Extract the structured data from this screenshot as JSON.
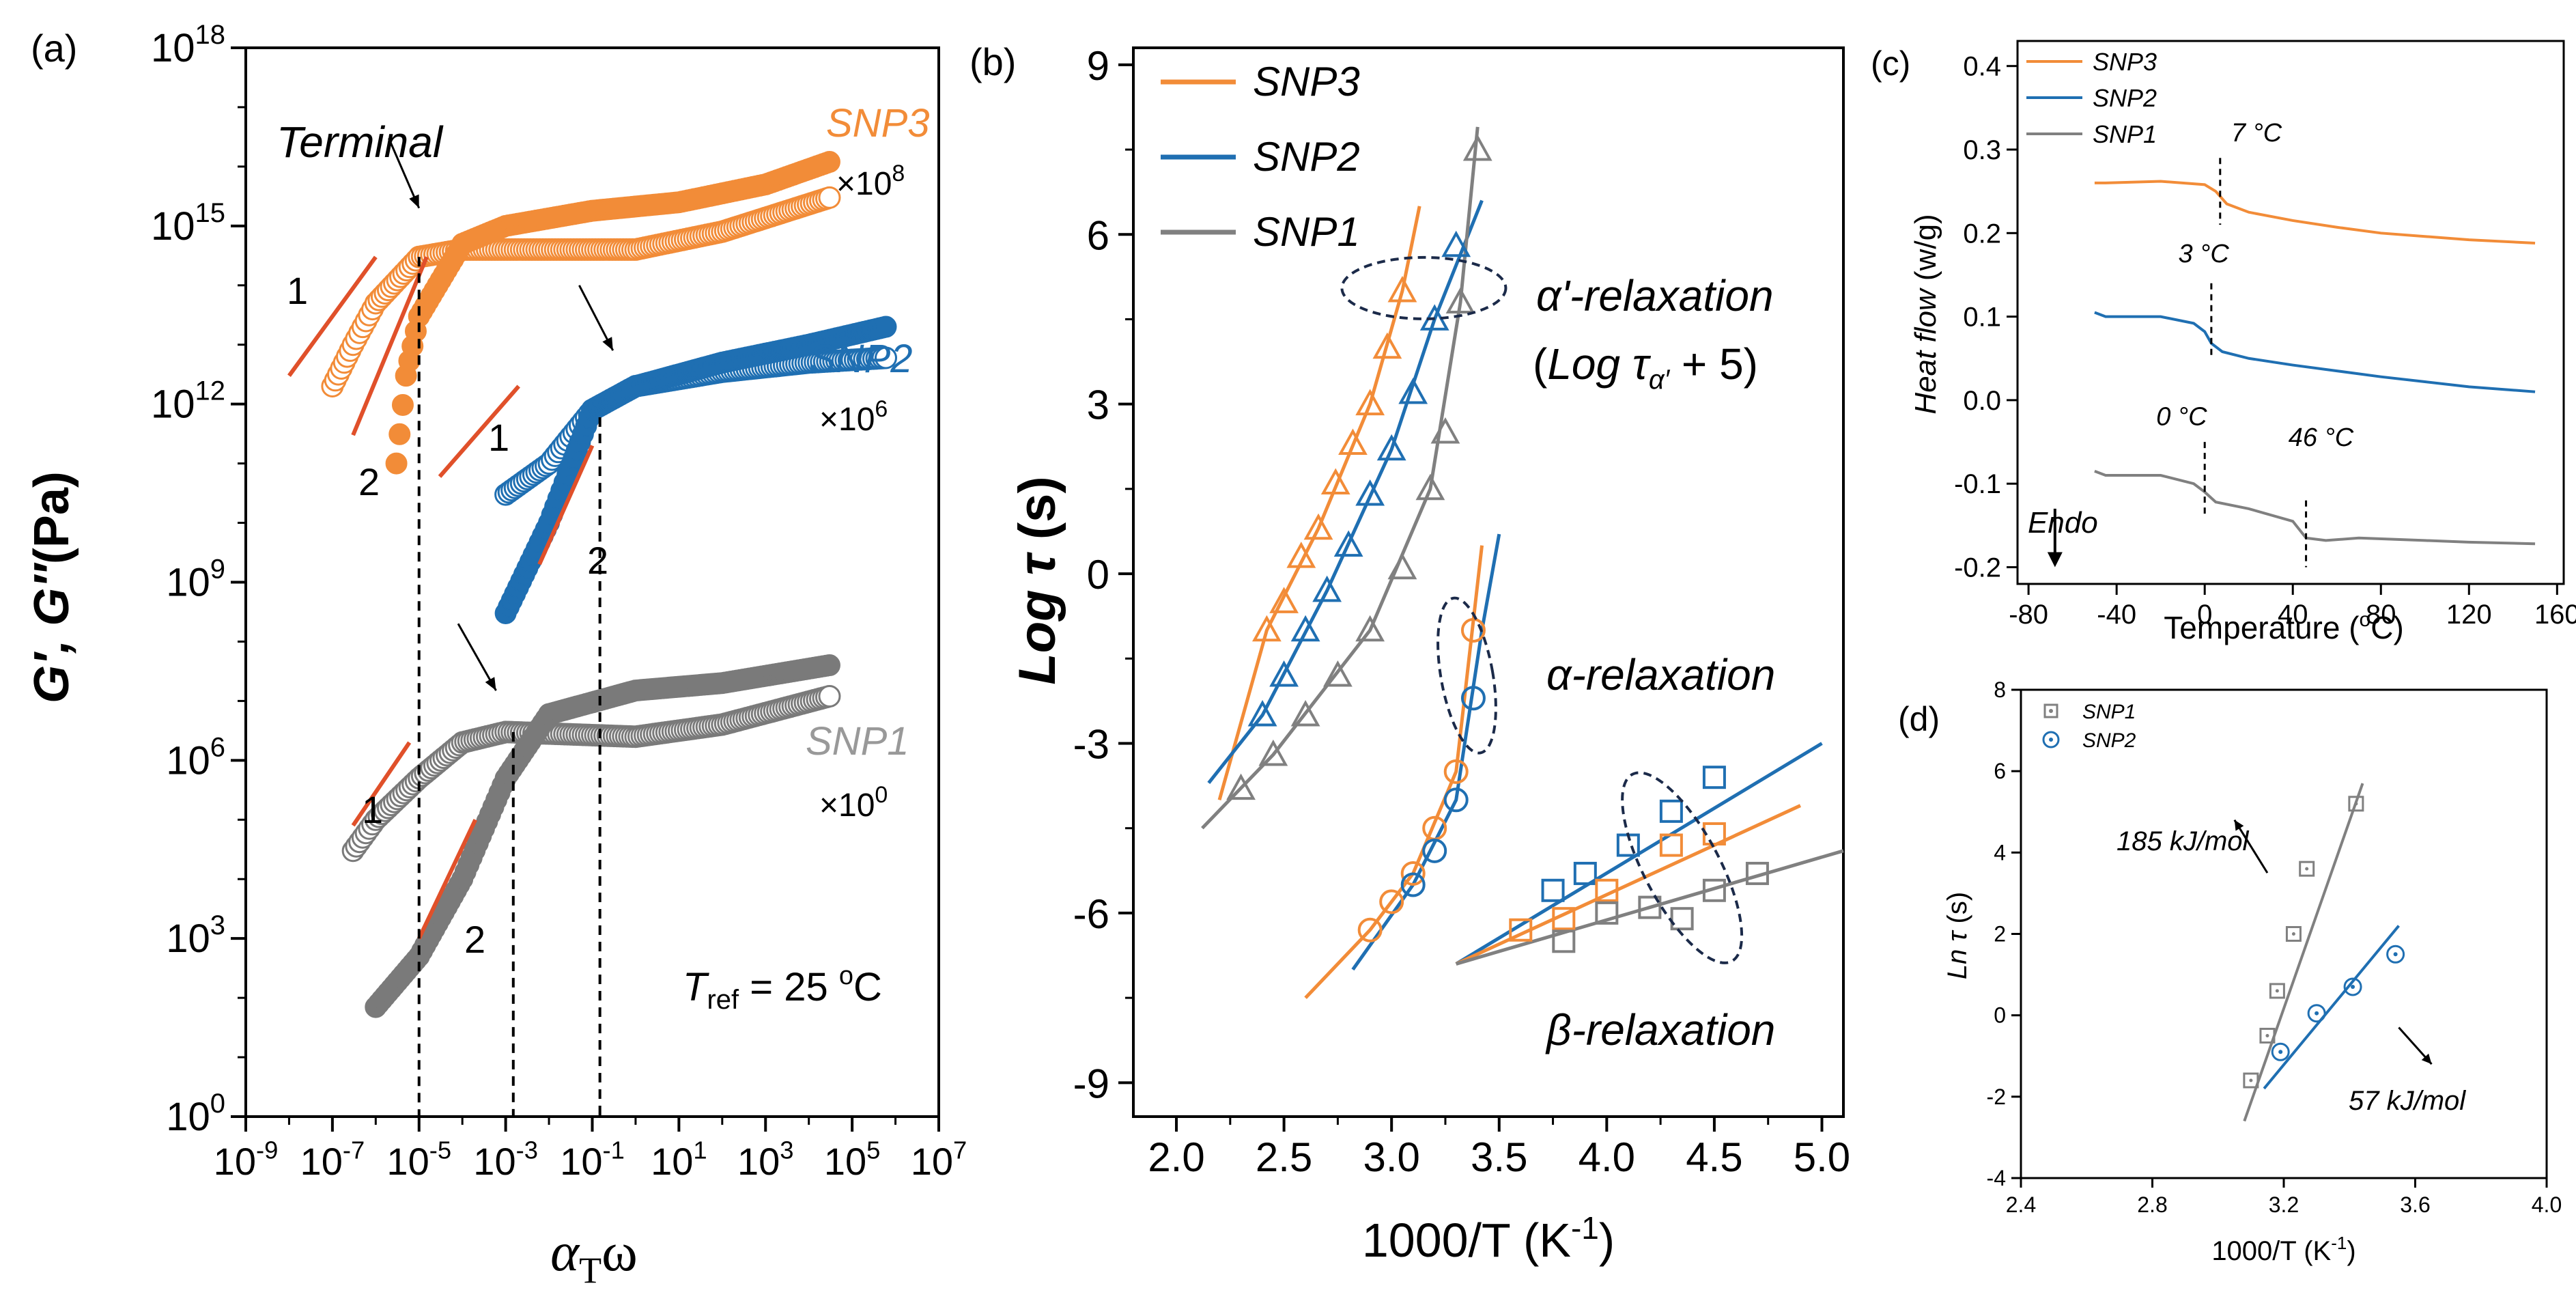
{
  "colors": {
    "snp3": "#F28C38",
    "snp2": "#1F6FB2",
    "snp1": "#808080",
    "fitline": "#E0502A",
    "ellipse": "#1B2A49"
  },
  "panels": {
    "a": "(a)",
    "b": "(b)",
    "c": "(c)",
    "d": "(d)"
  },
  "chart_data": [
    {
      "panel": "a",
      "type": "scatter",
      "xlabel": "αTω",
      "ylabel": "G′, G″(Pa)",
      "xscale": "log",
      "yscale": "log",
      "xlim": [
        1e-09,
        10000000.0
      ],
      "ylim": [
        1,
        1e+18
      ],
      "xticks": [
        "10-9",
        "10-7",
        "10-5",
        "10-3",
        "10-1",
        "101",
        "103",
        "105",
        "107"
      ],
      "yticks": [
        "100",
        "103",
        "106",
        "109",
        "1012",
        "1015",
        "1018"
      ],
      "series": [
        {
          "name": "SNP3",
          "shift": "×108",
          "G_storage": [
            [
              3e-06,
              100000000000.0
            ],
            [
              5e-06,
              3000000000000.0
            ],
            [
              1e-05,
              30000000000000.0
            ],
            [
              0.0001,
              500000000000000.0
            ],
            [
              0.001,
              1000000000000000.0
            ],
            [
              0.1,
              1800000000000000.0
            ],
            [
              10,
              2500000000000000.0
            ],
            [
              1000.0,
              5000000000000000.0
            ],
            [
              30000.0,
              1.2e+16
            ]
          ],
          "G_loss": [
            [
              1e-07,
              2000000000000.0
            ],
            [
              3e-07,
              10000000000000.0
            ],
            [
              1e-06,
              50000000000000.0
            ],
            [
              1e-05,
              300000000000000.0
            ],
            [
              0.0001,
              400000000000000.0
            ],
            [
              0.01,
              400000000000000.0
            ],
            [
              1,
              400000000000000.0
            ],
            [
              100,
              800000000000000.0
            ],
            [
              30000.0,
              3000000000000000.0
            ]
          ]
        },
        {
          "name": "SNP2",
          "shift": "×106",
          "G_storage": [
            [
              0.001,
              300000000.0
            ],
            [
              0.01,
              10000000000.0
            ],
            [
              0.1,
              800000000000.0
            ],
            [
              1,
              2000000000000.0
            ],
            [
              100,
              5000000000000.0
            ],
            [
              10000.0,
              10000000000000.0
            ],
            [
              600000.0,
              20000000000000.0
            ]
          ],
          "G_loss": [
            [
              0.001,
              30000000000.0
            ],
            [
              0.01,
              100000000000.0
            ],
            [
              0.1,
              800000000000.0
            ],
            [
              1,
              2000000000000.0
            ],
            [
              100,
              3500000000000.0
            ],
            [
              10000.0,
              5000000000000.0
            ],
            [
              600000.0,
              6000000000000.0
            ]
          ]
        },
        {
          "name": "SNP1",
          "shift": "×100",
          "G_storage": [
            [
              1e-06,
              70.0
            ],
            [
              1e-05,
              500.0
            ],
            [
              0.0001,
              10000.0
            ],
            [
              0.001,
              500000.0
            ],
            [
              0.01,
              6000000.0
            ],
            [
              1,
              15000000.0
            ],
            [
              100,
              20000000.0
            ],
            [
              30000.0,
              40000000.0
            ]
          ],
          "G_loss": [
            [
              3e-07,
              30000.0
            ],
            [
              1e-06,
              100000.0
            ],
            [
              1e-05,
              500000.0
            ],
            [
              0.0001,
              2000000.0
            ],
            [
              0.001,
              3000000.0
            ],
            [
              1,
              2500000.0
            ],
            [
              100,
              4000000.0
            ],
            [
              30000.0,
              12000000.0
            ]
          ]
        }
      ],
      "annotations": [
        "Terminal",
        "Tref = 25 oC",
        "1",
        "2"
      ]
    },
    {
      "panel": "b",
      "type": "scatter",
      "xlabel": "1000/T (K-1)",
      "ylabel": "Log τ (s)",
      "xlim": [
        1.8,
        5.1
      ],
      "ylim": [
        -9.6,
        9.3
      ],
      "xticks": [
        "2.0",
        "2.5",
        "3.0",
        "3.5",
        "4.0",
        "4.5",
        "5.0"
      ],
      "yticks": [
        "9",
        "6",
        "3",
        "0",
        "-3",
        "-6",
        "-9"
      ],
      "legend": [
        "SNP3",
        "SNP2",
        "SNP1"
      ],
      "relaxations": [
        "α'-relaxation",
        "(Log τα' + 5)",
        "α-relaxation",
        "β-relaxation"
      ],
      "alpha_prime": {
        "SNP3": [
          [
            2.42,
            -1.0
          ],
          [
            2.5,
            -0.5
          ],
          [
            2.58,
            0.3
          ],
          [
            2.66,
            0.8
          ],
          [
            2.74,
            1.6
          ],
          [
            2.82,
            2.3
          ],
          [
            2.9,
            3.0
          ],
          [
            2.98,
            4.0
          ],
          [
            3.05,
            5.0
          ]
        ],
        "SNP2": [
          [
            2.4,
            -2.5
          ],
          [
            2.5,
            -1.8
          ],
          [
            2.6,
            -1.0
          ],
          [
            2.7,
            -0.3
          ],
          [
            2.8,
            0.5
          ],
          [
            2.9,
            1.4
          ],
          [
            3.0,
            2.2
          ],
          [
            3.1,
            3.2
          ],
          [
            3.2,
            4.5
          ],
          [
            3.3,
            5.8
          ]
        ],
        "SNP1": [
          [
            2.3,
            -3.8
          ],
          [
            2.45,
            -3.2
          ],
          [
            2.6,
            -2.5
          ],
          [
            2.75,
            -1.8
          ],
          [
            2.9,
            -1.0
          ],
          [
            3.05,
            0.1
          ],
          [
            3.18,
            1.5
          ],
          [
            3.25,
            2.5
          ],
          [
            3.32,
            4.8
          ],
          [
            3.4,
            7.5
          ]
        ]
      },
      "alpha": {
        "SNP3": [
          [
            2.9,
            -6.3
          ],
          [
            3.0,
            -5.8
          ],
          [
            3.1,
            -5.3
          ],
          [
            3.2,
            -4.5
          ],
          [
            3.3,
            -3.5
          ],
          [
            3.38,
            -1.0
          ]
        ],
        "SNP2": [
          [
            3.1,
            -5.5
          ],
          [
            3.2,
            -4.9
          ],
          [
            3.3,
            -4.0
          ],
          [
            3.38,
            -2.2
          ]
        ]
      },
      "beta": {
        "SNP2": [
          [
            3.75,
            -5.6
          ],
          [
            3.9,
            -5.3
          ],
          [
            4.1,
            -4.8
          ],
          [
            4.3,
            -4.2
          ],
          [
            4.5,
            -3.6
          ]
        ],
        "SNP3": [
          [
            3.6,
            -6.3
          ],
          [
            3.8,
            -6.1
          ],
          [
            4.0,
            -5.6
          ],
          [
            4.3,
            -4.8
          ],
          [
            4.5,
            -4.6
          ]
        ],
        "SNP1": [
          [
            3.8,
            -6.5
          ],
          [
            4.0,
            -6.0
          ],
          [
            4.2,
            -5.9
          ],
          [
            4.35,
            -6.1
          ],
          [
            4.5,
            -5.6
          ],
          [
            4.7,
            -5.3
          ]
        ]
      }
    },
    {
      "panel": "c",
      "type": "line",
      "xlabel": "Temperature (°C)",
      "ylabel": "Heat flow (w/g)",
      "xlim": [
        -85,
        163
      ],
      "ylim": [
        -0.22,
        0.43
      ],
      "xticks": [
        "-80",
        "-40",
        "0",
        "40",
        "80",
        "120",
        "160"
      ],
      "yticks": [
        "0.4",
        "0.3",
        "0.2",
        "0.1",
        "0.0",
        "-0.1",
        "-0.2"
      ],
      "legend": [
        "SNP3",
        "SNP2",
        "SNP1"
      ],
      "series": [
        {
          "name": "SNP3",
          "x": [
            -50,
            -45,
            -20,
            0,
            5,
            10,
            20,
            40,
            60,
            80,
            100,
            120,
            150
          ],
          "y": [
            0.26,
            0.26,
            0.262,
            0.258,
            0.25,
            0.235,
            0.225,
            0.215,
            0.207,
            0.2,
            0.196,
            0.192,
            0.188
          ]
        },
        {
          "name": "SNP2",
          "x": [
            -50,
            -45,
            -20,
            -5,
            0,
            3,
            8,
            20,
            40,
            60,
            80,
            100,
            120,
            150
          ],
          "y": [
            0.105,
            0.1,
            0.1,
            0.092,
            0.082,
            0.068,
            0.058,
            0.05,
            0.042,
            0.035,
            0.028,
            0.022,
            0.016,
            0.01
          ]
        },
        {
          "name": "SNP1",
          "x": [
            -50,
            -45,
            -20,
            -5,
            0,
            5,
            20,
            40,
            46,
            55,
            70,
            100,
            120,
            150
          ],
          "y": [
            -0.085,
            -0.09,
            -0.09,
            -0.1,
            -0.11,
            -0.122,
            -0.13,
            -0.145,
            -0.165,
            -0.168,
            -0.165,
            -0.168,
            -0.17,
            -0.172
          ]
        }
      ],
      "transitions": [
        "7 °C",
        "3 °C",
        "0 °C",
        "46 °C"
      ],
      "arrow_label": "Endo"
    },
    {
      "panel": "d",
      "type": "scatter",
      "xlabel": "1000/T (K-1)",
      "ylabel": "Ln τ (s)",
      "xlim": [
        2.4,
        4.0
      ],
      "ylim": [
        -4,
        8
      ],
      "xticks": [
        "2.4",
        "2.8",
        "3.2",
        "3.6",
        "4.0"
      ],
      "yticks": [
        "8",
        "6",
        "4",
        "2",
        "0",
        "-2",
        "-4"
      ],
      "legend": [
        "SNP1",
        "SNP2"
      ],
      "series": [
        {
          "name": "SNP1",
          "points": [
            [
              3.1,
              -1.6
            ],
            [
              3.15,
              -0.5
            ],
            [
              3.18,
              0.6
            ],
            [
              3.23,
              2.0
            ],
            [
              3.27,
              3.6
            ],
            [
              3.42,
              5.2
            ]
          ],
          "fit": [
            [
              3.08,
              -2.6
            ],
            [
              3.44,
              5.7
            ]
          ],
          "label": "185 kJ/mol"
        },
        {
          "name": "SNP2",
          "points": [
            [
              3.19,
              -0.9
            ],
            [
              3.3,
              0.05
            ],
            [
              3.41,
              0.7
            ],
            [
              3.54,
              1.5
            ]
          ],
          "fit": [
            [
              3.14,
              -1.8
            ],
            [
              3.55,
              2.2
            ]
          ],
          "label": "57 kJ/mol"
        }
      ]
    }
  ]
}
